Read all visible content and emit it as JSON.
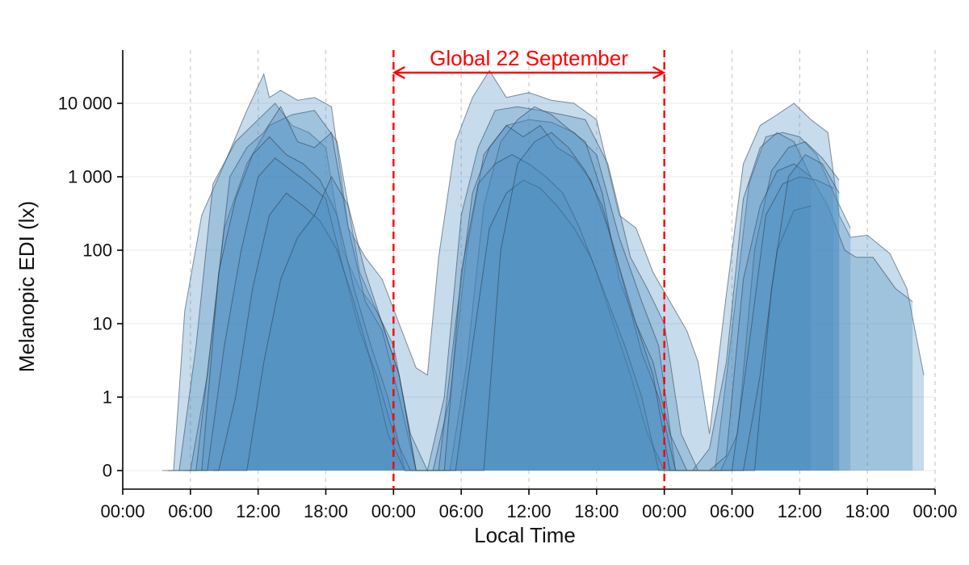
{
  "chart_data": {
    "type": "area",
    "title": "",
    "xlabel": "Local Time",
    "ylabel": "Melanopic EDI (lx)",
    "x_unit": "hours",
    "xlim": [
      0,
      72
    ],
    "x_ticks": [
      0,
      6,
      12,
      18,
      24,
      30,
      36,
      42,
      48,
      54,
      60,
      66,
      72
    ],
    "x_tick_labels": [
      "00:00",
      "06:00",
      "12:00",
      "18:00",
      "00:00",
      "06:00",
      "12:00",
      "18:00",
      "00:00",
      "06:00",
      "12:00",
      "18:00",
      "00:00"
    ],
    "y_scale": "symlog",
    "ylim": [
      -0.3,
      50000
    ],
    "y_ticks": [
      0,
      1,
      10,
      100,
      1000,
      10000
    ],
    "y_tick_labels": [
      "0",
      "1",
      "10",
      "100",
      "1 000",
      "10 000"
    ],
    "grid": {
      "x": "dashed vertical at tick positions",
      "y": "faint horizontal"
    },
    "legend": "none",
    "colors": {
      "fill": "#4f8fc0",
      "edge": "#2b3a48",
      "annotation": "#ff0000"
    },
    "annotation": {
      "text": "Global 22 September",
      "x_start": 24,
      "x_end": 48,
      "style": "red dashed vertical lines with double-headed arrow"
    },
    "series": [
      {
        "x": [
          3.5,
          4.5,
          5.5,
          7,
          9,
          11,
          12.5,
          13,
          14,
          15.5,
          17,
          18.5,
          20,
          21.5,
          23,
          24.5,
          26,
          27,
          28,
          29.5,
          31,
          32.5,
          34,
          36,
          38,
          40,
          42,
          44,
          45.5,
          47,
          48.5,
          50,
          51,
          52,
          53.5,
          55,
          56.5,
          58,
          59.5,
          61,
          62.5,
          63.5,
          64.5,
          66,
          68,
          69.5,
          71
        ],
        "y": [
          0,
          0,
          15,
          300,
          1500,
          8000,
          25000,
          12000,
          15000,
          11000,
          12000,
          9000,
          200,
          80,
          40,
          10,
          2.5,
          2,
          80,
          3000,
          12000,
          28000,
          12000,
          14000,
          11000,
          10000,
          6000,
          300,
          200,
          50,
          20,
          8,
          3,
          0.5,
          25,
          1500,
          5000,
          7000,
          10000,
          6000,
          4000,
          300,
          150,
          160,
          90,
          30,
          2
        ]
      },
      {
        "x": [
          4,
          5,
          6.5,
          8,
          10,
          12,
          13.5,
          15,
          16.5,
          18,
          19.5,
          21,
          22.5,
          24,
          25.5,
          27,
          28.5,
          30,
          31.5,
          33,
          35,
          37,
          39,
          41,
          43,
          45,
          46.5,
          48,
          49.5,
          51,
          52.5,
          54,
          55.5,
          57,
          58.5,
          60,
          61.5,
          63,
          64.5
        ],
        "y": [
          0,
          0,
          5,
          800,
          3000,
          6000,
          10000,
          5000,
          4000,
          2500,
          100,
          30,
          15,
          5,
          0.5,
          0,
          1,
          300,
          2500,
          8000,
          9000,
          8000,
          7000,
          6000,
          1500,
          80,
          30,
          10,
          0.5,
          0,
          0,
          8,
          800,
          3500,
          4000,
          3500,
          2000,
          600,
          200
        ]
      },
      {
        "x": [
          4.5,
          6,
          7.5,
          9,
          11,
          13,
          15,
          17,
          19,
          21,
          23,
          24.5,
          26,
          27.5,
          29,
          30.5,
          32,
          34,
          36,
          38,
          40,
          42,
          44,
          46,
          47.5,
          49,
          50.5,
          52,
          53.5,
          55,
          56.5,
          58,
          59.5,
          61,
          62.5,
          64,
          65,
          66.5,
          68.5,
          70
        ],
        "y": [
          0,
          0,
          2,
          200,
          1500,
          5000,
          7000,
          8000,
          3000,
          50,
          10,
          2,
          0,
          0,
          1,
          100,
          2000,
          5000,
          6000,
          5500,
          4000,
          2000,
          150,
          20,
          5,
          0,
          0,
          0.3,
          3,
          500,
          2500,
          4000,
          3000,
          1000,
          400,
          100,
          80,
          80,
          30,
          20
        ]
      },
      {
        "x": [
          5,
          6.5,
          8,
          9.5,
          11,
          12.5,
          14,
          15.5,
          17,
          18.5,
          20,
          21.5,
          23,
          24.5,
          26,
          27.5,
          29,
          30.5,
          32,
          33.5,
          35,
          36.5,
          38,
          39.5,
          41,
          42.5,
          44,
          45.5,
          47,
          48.5,
          50,
          51.5,
          53,
          54.5,
          56,
          57.5,
          59,
          60.5,
          62,
          63.5
        ],
        "y": [
          0,
          0,
          10,
          1000,
          2500,
          4000,
          9000,
          3000,
          2500,
          4000,
          200,
          20,
          8,
          1,
          0,
          0,
          0,
          3,
          400,
          3000,
          6000,
          9000,
          7000,
          4500,
          3000,
          600,
          40,
          10,
          3,
          0.5,
          0,
          0,
          0,
          0.5,
          100,
          1200,
          2500,
          3000,
          1800,
          900
        ]
      },
      {
        "x": [
          5.5,
          7,
          8.5,
          10,
          11.5,
          13,
          14.5,
          16,
          17.5,
          19,
          20.5,
          22,
          23.5,
          25,
          26.5,
          28,
          29.5,
          31,
          32.5,
          34,
          35.5,
          37,
          38.5,
          40,
          41.5,
          43,
          44.5,
          46,
          47.5,
          49,
          50.5,
          52,
          53.5,
          55,
          56.5,
          58,
          59.5,
          61
        ],
        "y": [
          0,
          0,
          50,
          500,
          2000,
          3500,
          2000,
          1500,
          900,
          300,
          30,
          5,
          1,
          0,
          0,
          0,
          10,
          600,
          2500,
          5000,
          3500,
          5000,
          2500,
          1800,
          900,
          200,
          30,
          4,
          1,
          0,
          0,
          0,
          0.2,
          40,
          400,
          1200,
          1500,
          1000
        ]
      },
      {
        "x": [
          6,
          7.5,
          9,
          10.5,
          12,
          13.5,
          15,
          16.5,
          18,
          19.5,
          21,
          22.5,
          24,
          25.5,
          27,
          28.5,
          30,
          31.5,
          33,
          34.5,
          36,
          37.5,
          39,
          40.5,
          42,
          43.5,
          45,
          46.5,
          48,
          49.5,
          51,
          52.5,
          54,
          55.5,
          57,
          58.5,
          60,
          61.5,
          63
        ],
        "y": [
          0,
          0,
          5,
          100,
          1000,
          1800,
          1200,
          800,
          500,
          60,
          8,
          2,
          0.5,
          0,
          0,
          0,
          50,
          800,
          1500,
          2000,
          1500,
          1000,
          600,
          200,
          50,
          10,
          2,
          0.5,
          0,
          0,
          0,
          0,
          0,
          5,
          300,
          800,
          1000,
          900,
          700
        ]
      },
      {
        "x": [
          7,
          8.5,
          10,
          11.5,
          13,
          14.5,
          16,
          17.5,
          19,
          20.5,
          22,
          23.5,
          25,
          26.5,
          28,
          29.5,
          31,
          32.5,
          34,
          35.5,
          37,
          38.5,
          40,
          41.5,
          43,
          44.5,
          46,
          47.5,
          49,
          50.5,
          52,
          53.5,
          55,
          56.5,
          58,
          59.5,
          61
        ],
        "y": [
          0,
          0,
          1,
          30,
          300,
          600,
          400,
          250,
          100,
          20,
          3,
          0.5,
          0,
          0,
          0,
          0,
          5,
          200,
          600,
          900,
          700,
          400,
          200,
          80,
          20,
          5,
          1,
          0,
          0,
          0,
          0,
          0,
          0,
          2,
          100,
          350,
          400
        ]
      },
      {
        "x": [
          8,
          9.5,
          11,
          12.5,
          14,
          15.5,
          17,
          18.5,
          20,
          21.5,
          23,
          24.5,
          26,
          27.5,
          29,
          30.5,
          32,
          33.5,
          35,
          36.5,
          38,
          39.5,
          41,
          42.5,
          44,
          45.5,
          47,
          48.5,
          50,
          51.5,
          53,
          54.5,
          56,
          57.5,
          59,
          60.5,
          62,
          63.5
        ],
        "y": [
          0,
          0,
          0,
          3,
          40,
          150,
          300,
          1000,
          400,
          50,
          10,
          2,
          0,
          0,
          0,
          0,
          0,
          100,
          1500,
          3000,
          4000,
          2500,
          1200,
          400,
          60,
          10,
          2,
          0,
          0,
          0,
          0,
          0,
          0,
          30,
          1000,
          2000,
          1500,
          600
        ]
      }
    ]
  }
}
